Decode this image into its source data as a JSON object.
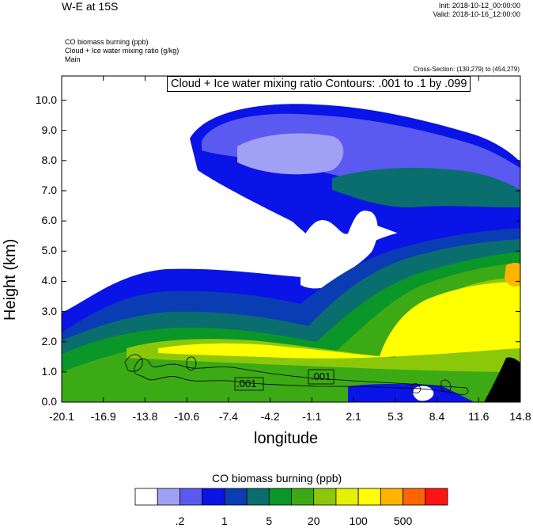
{
  "header": {
    "title": "W-E at 15S",
    "init": "Init: 2018-10-12_00:00:00",
    "valid": "Valid: 2018-10-16_12:00:00",
    "field1": "CO biomass burning   (ppb)",
    "field2": "Cloud + Ice water mixing ratio   (g/kg)",
    "field3": "Main",
    "cross_section": "Cross-Section: (130,279) to (454,279)",
    "contour_label": "Cloud + Ice water mixing ratio Contours: .001 to .1 by .099"
  },
  "chart_data": {
    "type": "heatmap",
    "title": "W-E at 15S",
    "xlabel": "longitude",
    "ylabel": "Height (km)",
    "xlim": [
      -20.1,
      14.8
    ],
    "ylim": [
      0.0,
      10.8
    ],
    "x_ticks": [
      "-20.1",
      "-16.9",
      "-13.8",
      "-10.6",
      "-7.4",
      "-4.2",
      "-1.1",
      "2.1",
      "5.3",
      "8.4",
      "11.6",
      "14.8"
    ],
    "y_ticks": [
      "0.0",
      "1.0",
      "2.0",
      "3.0",
      "4.0",
      "5.0",
      "6.0",
      "7.0",
      "8.0",
      "9.0",
      "10.0"
    ],
    "contour_labels": [
      ".001",
      ".001"
    ],
    "colorbar": {
      "title": "CO biomass burning  (ppb)",
      "colors": [
        "#ffffff",
        "#a0a0f5",
        "#5a5af0",
        "#0a14e6",
        "#0a3cb4",
        "#0a6e6e",
        "#0a9628",
        "#3caa14",
        "#8cc80a",
        "#e6f000",
        "#ffff00",
        "#ffb400",
        "#ff6400",
        "#ff1414"
      ],
      "tick_labels": [
        ".2",
        "1",
        "5",
        "20",
        "100",
        "500"
      ]
    }
  }
}
